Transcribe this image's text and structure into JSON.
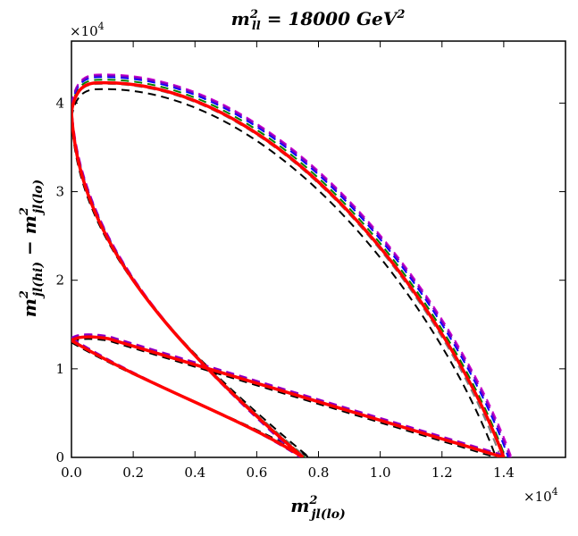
{
  "chart_data": {
    "type": "line",
    "title": "m²ll = 18000 GeV²",
    "title_main": "m",
    "title_sup": "2",
    "title_sub": "ll",
    "title_rest": " = 18000 GeV",
    "title_rest_sup": "2",
    "xlabel_main": "m",
    "xlabel_sup": "2",
    "xlabel_sub": "jl(lo)",
    "ylabel_main": "m",
    "ylabel_sup": "2",
    "ylabel_sub": "jl(hi)",
    "ylabel_minus": " − ",
    "ylabel_main2": "m",
    "ylabel_sup2": "2",
    "ylabel_sub2": "jl(lo)",
    "x_multiplier_base": "×10",
    "x_multiplier_exp": "4",
    "y_multiplier_base": "×10",
    "y_multiplier_exp": "4",
    "xlim": [
      0,
      16000
    ],
    "ylim": [
      0,
      47000
    ],
    "x_ticks": [
      0,
      2000,
      4000,
      6000,
      8000,
      10000,
      12000,
      14000
    ],
    "x_tick_labels": [
      "0.0",
      "0.2",
      "0.4",
      "0.6",
      "0.8",
      "1.0",
      "1.2",
      "1.4"
    ],
    "y_ticks": [
      0,
      10000,
      20000,
      30000,
      40000
    ],
    "y_tick_labels": [
      "0",
      "1",
      "2",
      "3",
      "4"
    ],
    "series": [
      {
        "name": "black-dashed",
        "color": "#000000",
        "dash": "9,6",
        "width": 2,
        "scale": 0.983,
        "endx": 7700,
        "tx2": 13750
      },
      {
        "name": "gray-dashed",
        "color": "#808080",
        "dash": "9,6",
        "width": 2,
        "scale": 0.997,
        "endx": 7600,
        "tx2": 13900
      },
      {
        "name": "green-dashed",
        "color": "#008000",
        "dash": "9,6",
        "width": 2,
        "scale": 1.008,
        "endx": 7550,
        "tx2": 14050
      },
      {
        "name": "blue-dashed",
        "color": "#0000ff",
        "dash": "9,6",
        "width": 2,
        "scale": 1.015,
        "endx": 7500,
        "tx2": 14150
      },
      {
        "name": "magenta-dashed",
        "color": "#cc00cc",
        "dash": "9,6",
        "width": 2,
        "scale": 1.022,
        "endx": 7450,
        "tx2": 14250
      },
      {
        "name": "purple-dashed",
        "color": "#8000c0",
        "dash": "9,6",
        "width": 2,
        "scale": 1.019,
        "endx": 7400,
        "tx2": 14200
      },
      {
        "name": "red-solid",
        "color": "#ff0000",
        "dash": "",
        "width": 3.5,
        "scale": 1.0,
        "endx": 7500,
        "tx2": 14000
      }
    ],
    "outer_lobe": {
      "start": [
        0,
        39000
      ],
      "peak": [
        1000,
        42300
      ],
      "end": [
        14000,
        0
      ]
    },
    "inner_lobe": {
      "start": [
        0,
        39000
      ],
      "end": [
        7500,
        0
      ]
    },
    "lower_triangle": {
      "apex": [
        0,
        13200
      ],
      "top": [
        500,
        13700
      ],
      "right": [
        14000,
        0
      ],
      "inner_end": [
        7500,
        0
      ]
    }
  }
}
